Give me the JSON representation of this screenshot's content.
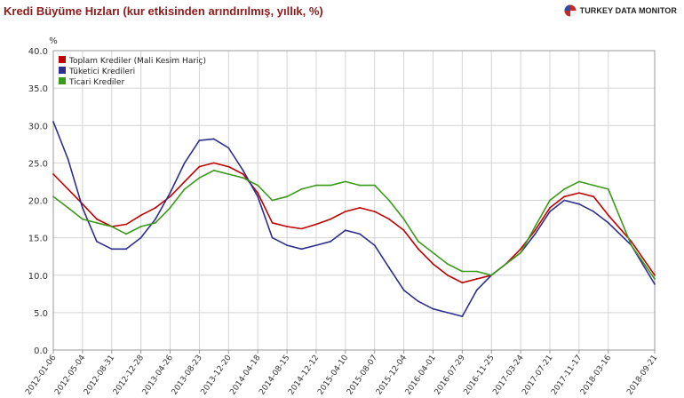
{
  "header": {
    "title": "Kredi Büyüme Hızları (kur etkisinden arındırılmış, yıllık, %)",
    "brand": "TURKEY DATA MONITOR",
    "brand_logo_icon": "globe-flag-icon"
  },
  "colors": {
    "title": "#8b1a1a",
    "series_total": "#c00000",
    "series_consumer": "#2e2e8f",
    "series_commercial": "#3a9a1a",
    "grid": "#d4d4d4",
    "axis": "#999999"
  },
  "chart_data": {
    "type": "line",
    "title": "Kredi Büyüme Hızları (kur etkisinden arındırılmış, yıllık, %)",
    "ylabel": "%",
    "xlabel": "",
    "ylim": [
      0,
      40
    ],
    "yticks": [
      "0.0",
      "5.0",
      "10.0",
      "15.0",
      "20.0",
      "25.0",
      "30.0",
      "35.0",
      "40.0"
    ],
    "grid": true,
    "legend_position": "top-left",
    "x_tick_labels": [
      "2012-01-06",
      "2012-05-04",
      "2012-08-31",
      "2012-12-28",
      "2013-04-26",
      "2013-08-23",
      "2013-12-20",
      "2014-04-18",
      "2014-08-15",
      "2014-12-12",
      "2015-04-10",
      "2015-08-07",
      "2015-12-04",
      "2016-04-01",
      "2016-07-29",
      "2016-11-25",
      "2017-03-24",
      "2017-07-21",
      "2017-11-17",
      "2018-03-16",
      "2018-09-21"
    ],
    "x": [
      "2012-01-06",
      "2012-03-06",
      "2012-05-04",
      "2012-07-01",
      "2012-08-31",
      "2012-10-29",
      "2012-12-28",
      "2013-02-25",
      "2013-04-26",
      "2013-06-24",
      "2013-08-23",
      "2013-10-21",
      "2013-12-20",
      "2014-02-17",
      "2014-04-18",
      "2014-06-16",
      "2014-08-15",
      "2014-10-13",
      "2014-12-12",
      "2015-02-09",
      "2015-04-10",
      "2015-06-08",
      "2015-08-07",
      "2015-10-05",
      "2015-12-04",
      "2016-02-01",
      "2016-04-01",
      "2016-05-30",
      "2016-07-29",
      "2016-09-26",
      "2016-11-25",
      "2017-01-23",
      "2017-03-24",
      "2017-05-22",
      "2017-07-21",
      "2017-09-18",
      "2017-11-17",
      "2018-01-15",
      "2018-03-16",
      "2018-06-18",
      "2018-09-21"
    ],
    "series": [
      {
        "name": "Toplam Krediler (Mali Kesim Hariç)",
        "color": "#c00000",
        "values": [
          23.5,
          21.5,
          19.5,
          17.5,
          16.5,
          16.8,
          18.0,
          19.0,
          20.5,
          22.5,
          24.5,
          25.0,
          24.5,
          23.5,
          21.0,
          17.0,
          16.5,
          16.2,
          16.8,
          17.5,
          18.5,
          19.0,
          18.5,
          17.5,
          16.0,
          13.5,
          11.5,
          10.0,
          9.0,
          9.5,
          10.0,
          11.5,
          13.5,
          16.0,
          19.0,
          20.5,
          21.0,
          20.5,
          18.0,
          14.5,
          10.0
        ]
      },
      {
        "name": "Tüketici Kredileri",
        "color": "#2e2e8f",
        "values": [
          30.5,
          25.5,
          19.0,
          14.5,
          13.5,
          13.5,
          15.0,
          17.5,
          21.0,
          25.0,
          28.0,
          28.2,
          27.0,
          24.0,
          20.5,
          15.0,
          14.0,
          13.5,
          14.0,
          14.5,
          16.0,
          15.5,
          14.0,
          11.0,
          8.0,
          6.5,
          5.5,
          5.0,
          4.5,
          8.0,
          10.0,
          11.5,
          13.0,
          15.5,
          18.5,
          20.0,
          19.5,
          18.5,
          17.0,
          14.0,
          8.8
        ]
      },
      {
        "name": "Ticari Krediler",
        "color": "#3a9a1a",
        "values": [
          20.5,
          19.0,
          17.5,
          17.0,
          16.5,
          15.5,
          16.5,
          17.0,
          19.0,
          21.5,
          23.0,
          24.0,
          23.5,
          23.0,
          22.0,
          20.0,
          20.5,
          21.5,
          22.0,
          22.0,
          22.5,
          22.0,
          22.0,
          20.0,
          17.5,
          14.5,
          13.0,
          11.5,
          10.5,
          10.5,
          10.0,
          11.5,
          13.0,
          16.5,
          20.0,
          21.5,
          22.5,
          22.0,
          21.5,
          14.0,
          9.5
        ]
      }
    ]
  }
}
